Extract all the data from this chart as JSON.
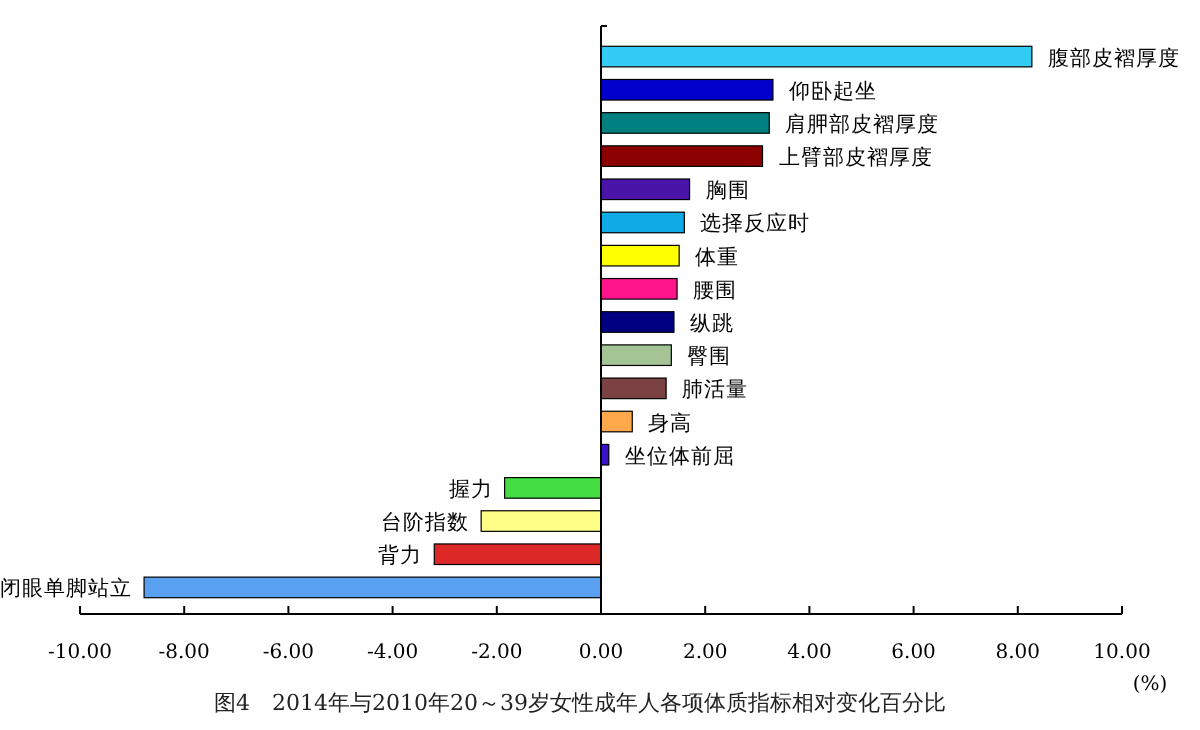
{
  "chart_data": {
    "type": "bar",
    "orientation": "horizontal",
    "title": "图4　2014年与2010年20～39岁女性成年人各项体质指标相对变化百分比",
    "xlabel": "(%)",
    "categories": [
      "腹部皮褶厚度",
      "仰卧起坐",
      "肩胛部皮褶厚度",
      "上臂部皮褶厚度",
      "胸围",
      "选择反应时",
      "体重",
      "腰围",
      "纵跳",
      "臀围",
      "肺活量",
      "身高",
      "坐位体前屈",
      "握力",
      "台阶指数",
      "背力",
      "闭眼单脚站立"
    ],
    "values": [
      8.27,
      3.3,
      3.23,
      3.1,
      1.7,
      1.6,
      1.5,
      1.46,
      1.4,
      1.35,
      1.25,
      0.6,
      0.15,
      -1.85,
      -2.3,
      -3.2,
      -8.77
    ],
    "colors": [
      "#33ccf5",
      "#0000cc",
      "#008080",
      "#8b0000",
      "#4b14a8",
      "#10aae6",
      "#ffff00",
      "#ff148c",
      "#000080",
      "#a4c495",
      "#7a4242",
      "#ffa84c",
      "#3a10c8",
      "#44dd44",
      "#ffff88",
      "#dd2828",
      "#5aa0f0"
    ],
    "xlim": [
      -10,
      10
    ],
    "xticks": [
      {
        "value": -10,
        "label": "-10.00"
      },
      {
        "value": -8,
        "label": "-8.00"
      },
      {
        "value": -6,
        "label": "-6.00"
      },
      {
        "value": -4,
        "label": "-4.00"
      },
      {
        "value": -2,
        "label": "-2.00"
      },
      {
        "value": 0,
        "label": "0.00"
      },
      {
        "value": 2,
        "label": "2.00"
      },
      {
        "value": 4,
        "label": "4.00"
      },
      {
        "value": 6,
        "label": "6.00"
      },
      {
        "value": 8,
        "label": "8.00"
      },
      {
        "value": 10,
        "label": "10.00"
      }
    ],
    "grid": false
  }
}
